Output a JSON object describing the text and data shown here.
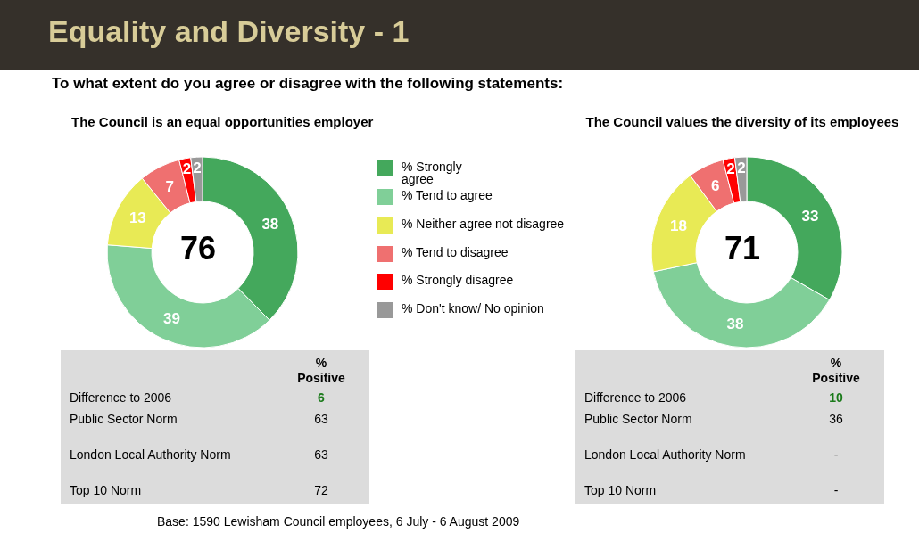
{
  "chart_data": [
    {
      "type": "other",
      "title": "Equality and Diversity - 1",
      "subtitle": "To what extent do you agree or disagree with the following statements:",
      "annotations": [
        "Base: 1590 Lewisham Council employees, 6 July - 6 August 2009"
      ]
    },
    {
      "type": "donut",
      "title": "The Council is an equal opportunities employer",
      "categories": [
        "% Strongly agree",
        "% Tend to agree",
        "% Neither agree not disagree",
        "% Tend to disagree",
        "% Strongly disagree",
        "% Don't know/ No opinion"
      ],
      "values": [
        38,
        39,
        13,
        7,
        2,
        2
      ],
      "colors": [
        "#44a85c",
        "#80cf98",
        "#e8ea55",
        "#ef7070",
        "#ff0000",
        "#999999"
      ],
      "data_labels": true,
      "legend": "right",
      "annotations": [
        "76",
        "%\nPositive",
        "Difference to 2006",
        "6",
        "Public Sector Norm",
        "63",
        "London Local Authority Norm",
        "63",
        "Top 10 Norm",
        "72"
      ]
    },
    {
      "type": "donut",
      "title": "The Council values the diversity of its employees",
      "categories": [
        null,
        null,
        null,
        null,
        null,
        null
      ],
      "values": [
        33,
        38,
        18,
        6,
        2,
        2
      ],
      "colors": [
        "#44a85c",
        "#80cf98",
        "#e8ea55",
        "#ef7070",
        "#ff0000",
        "#999999"
      ],
      "data_labels": true,
      "annotations": [
        "71",
        "%\nPositive",
        "Difference to 2006",
        "10",
        "Public Sector Norm",
        "36",
        "London Local Authority Norm",
        "-",
        "Top 10 Norm",
        "-"
      ]
    }
  ]
}
